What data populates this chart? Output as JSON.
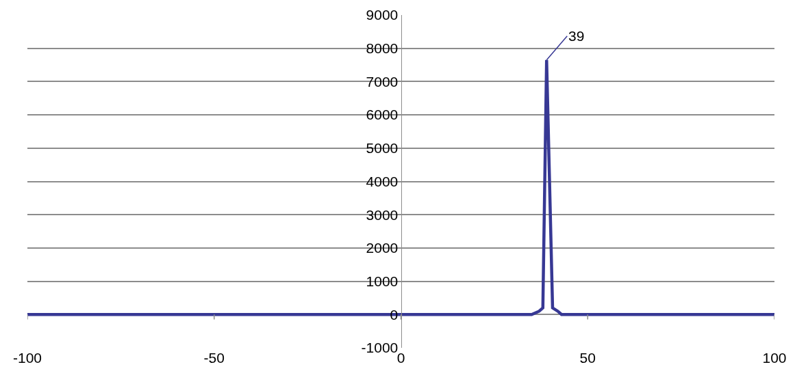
{
  "chart_data": {
    "type": "line",
    "x": [
      -100,
      -50,
      0,
      10,
      20,
      30,
      35,
      37,
      38,
      39,
      40.6,
      42,
      43,
      45,
      50,
      60,
      80,
      100
    ],
    "series": [
      {
        "color": "#373894",
        "values": [
          0,
          0,
          0,
          0,
          0,
          0,
          0,
          100,
          200,
          7650,
          200,
          100,
          0,
          0,
          0,
          0,
          0,
          0
        ]
      }
    ],
    "xlim": [
      -100,
      100
    ],
    "xticks": [
      -100,
      -50,
      0,
      50,
      100
    ],
    "ylim": [
      -1000,
      9000
    ],
    "yticks": [
      -1000,
      0,
      1000,
      2000,
      3000,
      4000,
      5000,
      6000,
      7000,
      8000,
      9000
    ],
    "grid": "y",
    "legend": false,
    "marker": "none",
    "line_style": "solid",
    "annotations": [
      {
        "text": "39",
        "x": 39,
        "y": 7650
      }
    ]
  }
}
